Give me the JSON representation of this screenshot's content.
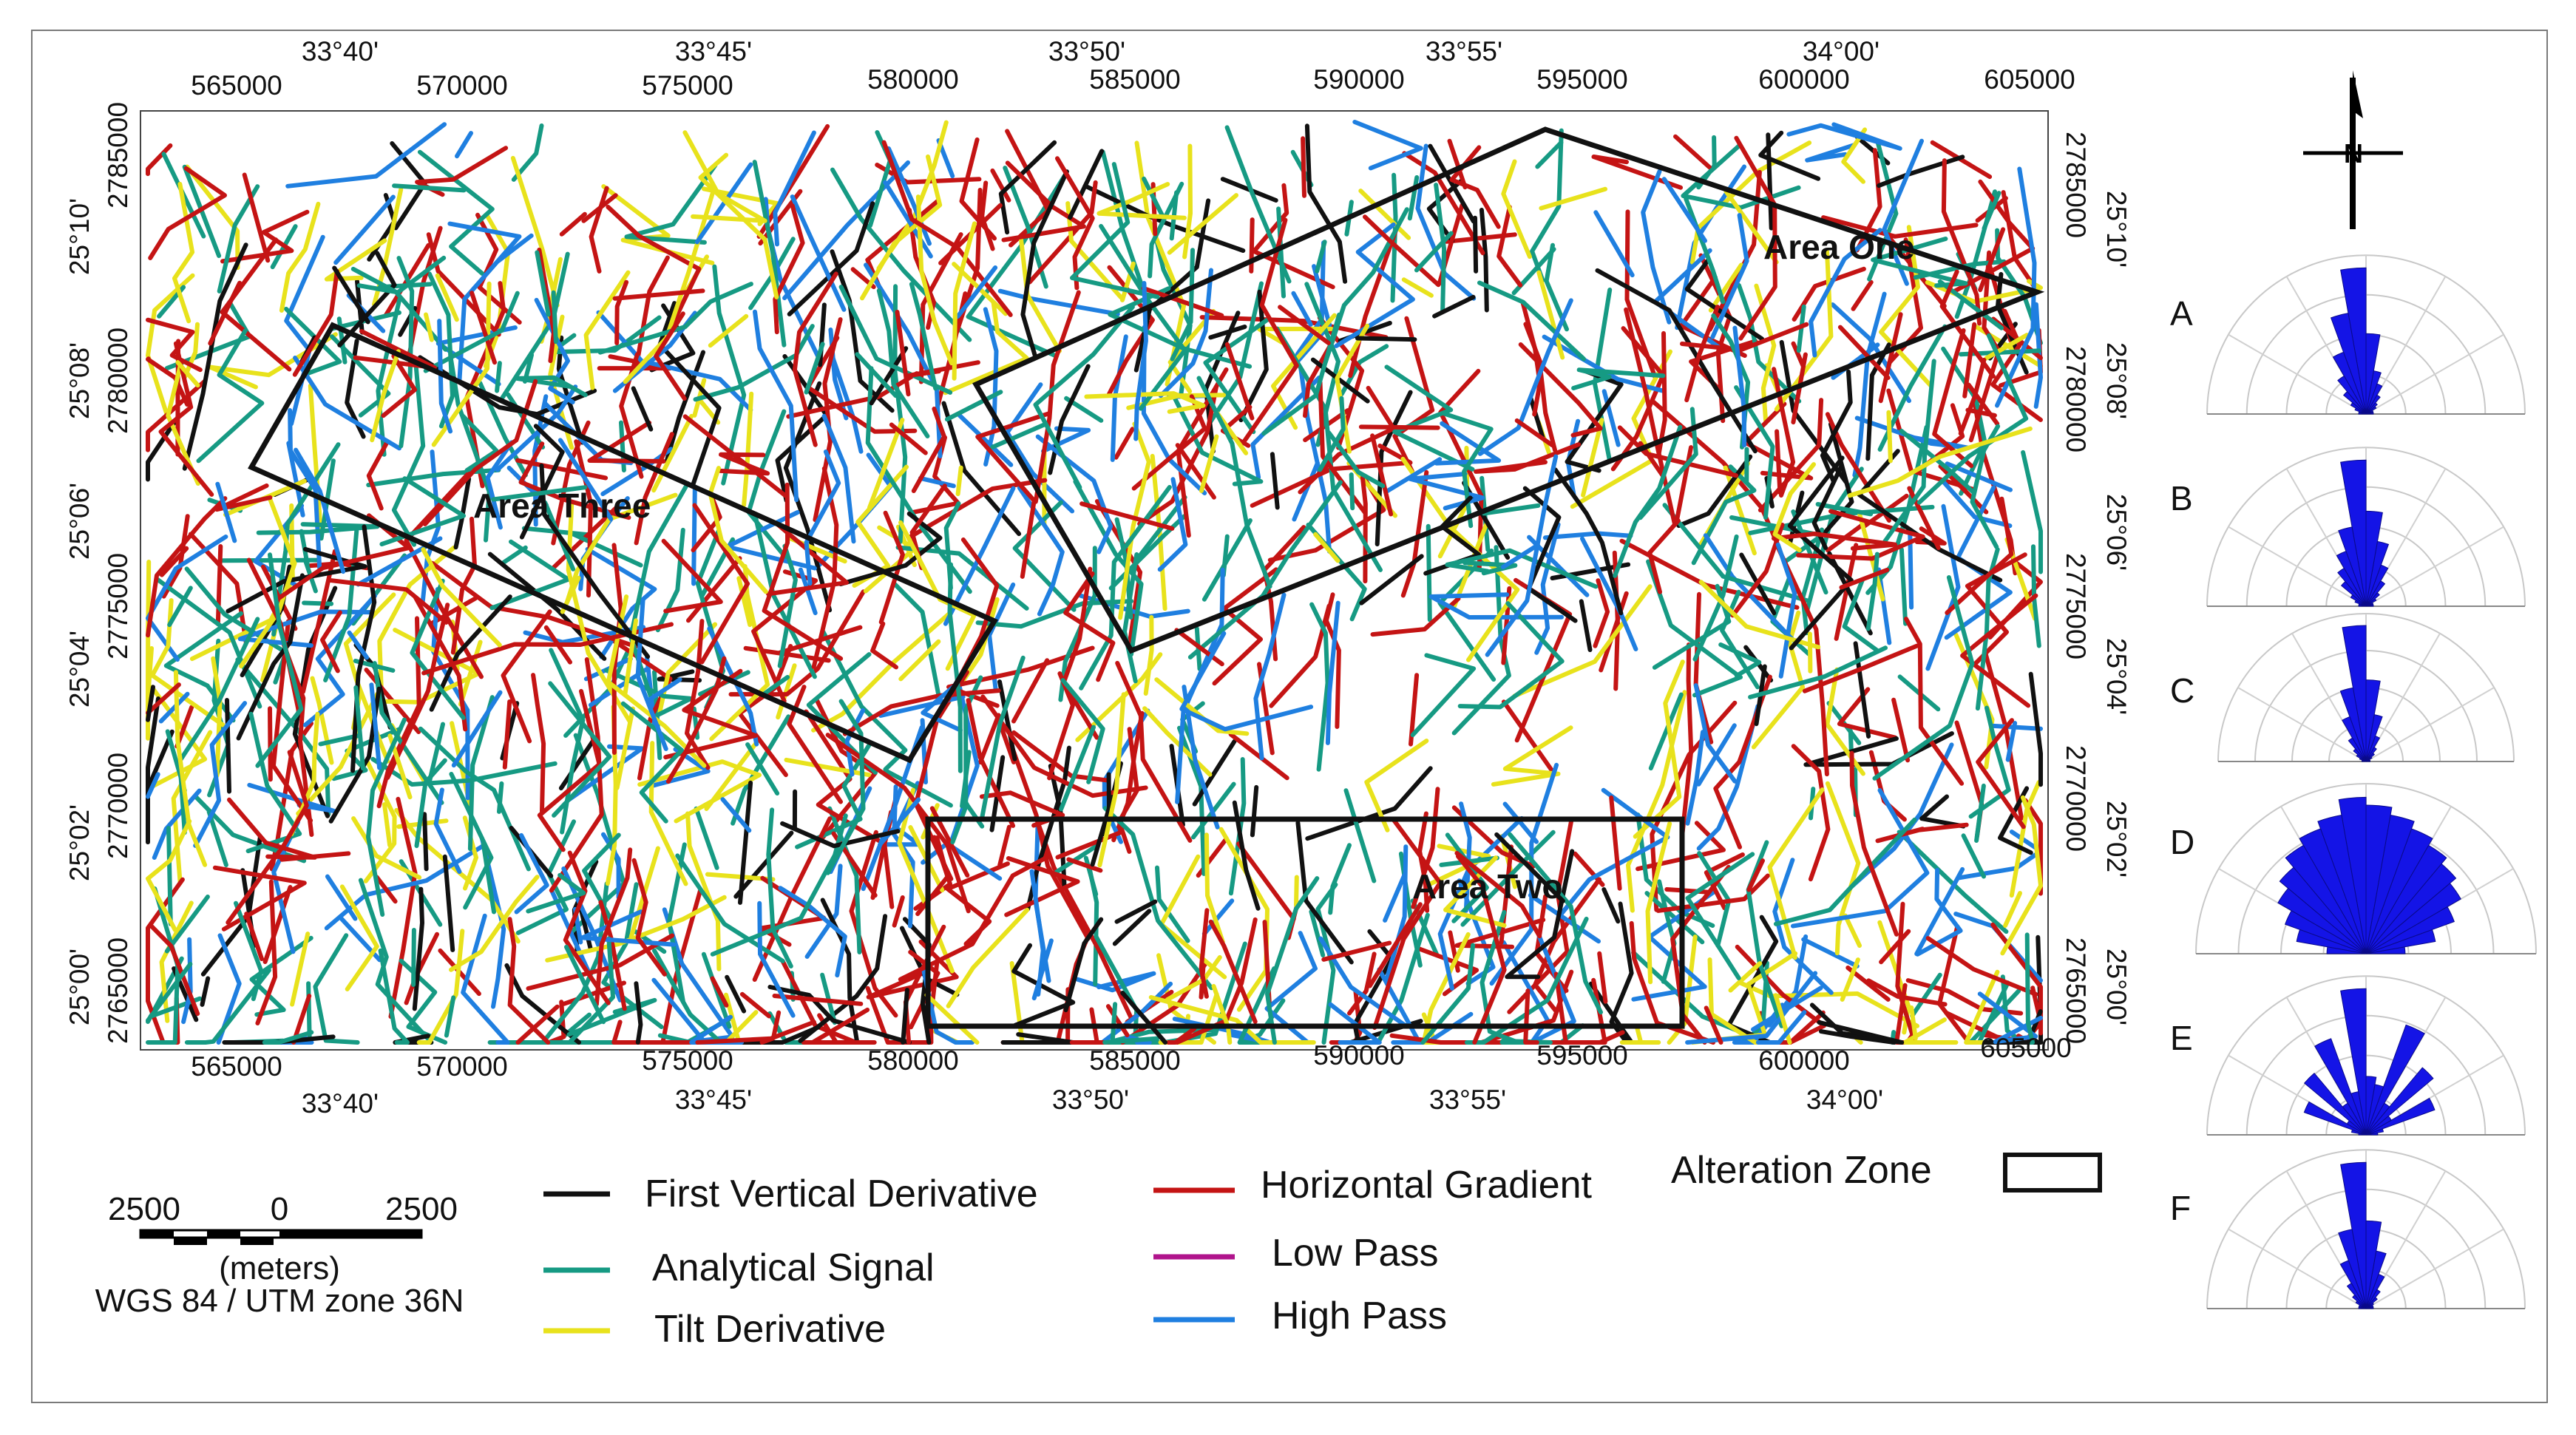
{
  "map": {
    "x_ticks": [
      "565000",
      "570000",
      "575000",
      "580000",
      "585000",
      "590000",
      "595000",
      "600000",
      "605000"
    ],
    "x_ticks_bottom_last": "605000",
    "y_ticks": [
      "2785000",
      "2780000",
      "2775000",
      "2770000",
      "2765000"
    ],
    "lon_labels": [
      "33°40'",
      "33°45'",
      "33°50'",
      "33°55'",
      "34°00'"
    ],
    "lat_labels": [
      "25°10'",
      "25°08'",
      "25°06'",
      "25°04'",
      "25°02'",
      "25°00'"
    ],
    "areas": [
      "Area One",
      "Area Two",
      "Area Three"
    ],
    "north_symbol": "N"
  },
  "legend": {
    "items": [
      {
        "label": "First Vertical Derivative",
        "color": "#111111"
      },
      {
        "label": "Analytical Signal",
        "color": "#169a83"
      },
      {
        "label": "Tilt Derivative",
        "color": "#e8e21c"
      },
      {
        "label": "Horizontal Gradient",
        "color": "#c41414"
      },
      {
        "label": "Low Pass",
        "color": "#b0148c"
      },
      {
        "label": "High Pass",
        "color": "#1f7fe0"
      }
    ],
    "alteration": "Alteration Zone"
  },
  "scale": {
    "left": "2500",
    "mid": "0",
    "right": "2500",
    "unit": "(meters)",
    "crs": "WGS 84 / UTM zone 36N"
  },
  "rose": {
    "labels": [
      "A",
      "B",
      "C",
      "D",
      "E",
      "F"
    ],
    "color": "#1414e6"
  }
}
